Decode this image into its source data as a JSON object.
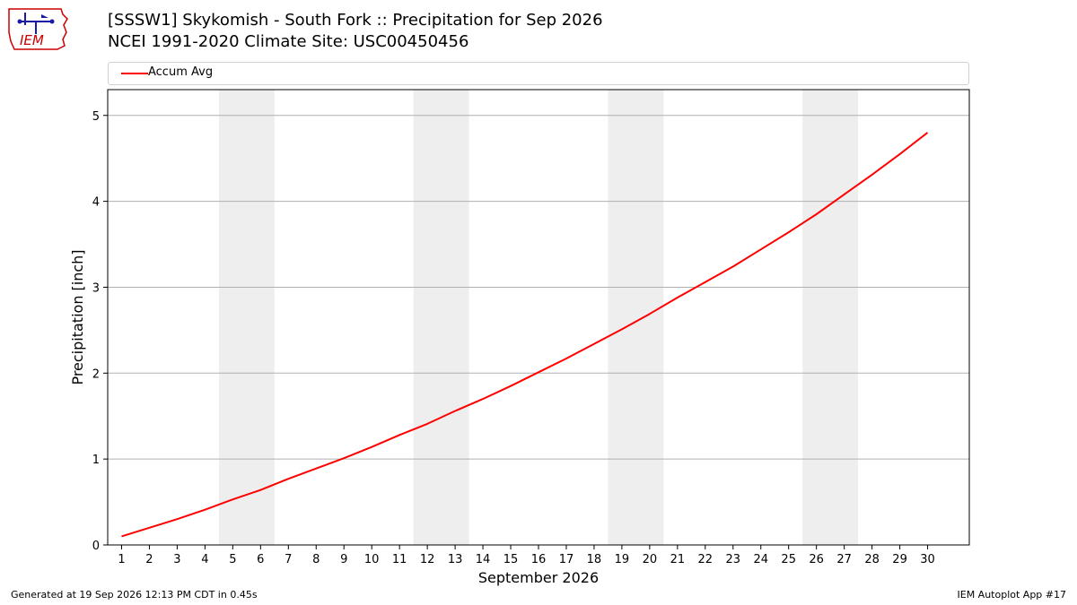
{
  "header": {
    "logo_text": "IEM",
    "title_line1": "[SSSW1] Skykomish - South Fork :: Precipitation for Sep 2026",
    "title_line2": "NCEI 1991-2020 Climate Site: USC00450456"
  },
  "colors": {
    "series": "#ff0000",
    "weekend_band": "#eeeeee",
    "grid": "#b0b0b0",
    "logo_red": "#cc0000",
    "logo_blue": "#1a1aa6"
  },
  "chart_data": {
    "type": "line",
    "title": "[SSSW1] Skykomish - South Fork :: Precipitation for Sep 2026",
    "subtitle": "NCEI 1991-2020 Climate Site: USC00450456",
    "xlabel": "September 2026",
    "ylabel": "Precipitation [inch]",
    "xlim": [
      0.5,
      31.5
    ],
    "ylim": [
      0,
      5.3
    ],
    "x_ticks": [
      1,
      2,
      3,
      4,
      5,
      6,
      7,
      8,
      9,
      10,
      11,
      12,
      13,
      14,
      15,
      16,
      17,
      18,
      19,
      20,
      21,
      22,
      23,
      24,
      25,
      26,
      27,
      28,
      29,
      30
    ],
    "y_ticks": [
      0,
      1,
      2,
      3,
      4,
      5
    ],
    "grid": "y-only",
    "legend_placement": "top, above plot",
    "shaded_weekends": [
      [
        5,
        6
      ],
      [
        12,
        13
      ],
      [
        19,
        20
      ],
      [
        26,
        27
      ]
    ],
    "series": [
      {
        "name": "Accum Avg",
        "x": [
          1,
          2,
          3,
          4,
          5,
          6,
          7,
          8,
          9,
          10,
          11,
          12,
          13,
          14,
          15,
          16,
          17,
          18,
          19,
          20,
          21,
          22,
          23,
          24,
          25,
          26,
          27,
          28,
          29,
          30
        ],
        "values": [
          0.1,
          0.2,
          0.3,
          0.41,
          0.53,
          0.64,
          0.77,
          0.89,
          1.01,
          1.14,
          1.28,
          1.41,
          1.56,
          1.7,
          1.85,
          2.01,
          2.17,
          2.34,
          2.51,
          2.69,
          2.88,
          3.06,
          3.24,
          3.44,
          3.64,
          3.85,
          4.08,
          4.31,
          4.55,
          4.8
        ]
      }
    ]
  },
  "footer": {
    "left": "Generated at 19 Sep 2026 12:13 PM CDT in 0.45s",
    "right": "IEM Autoplot App #17"
  }
}
